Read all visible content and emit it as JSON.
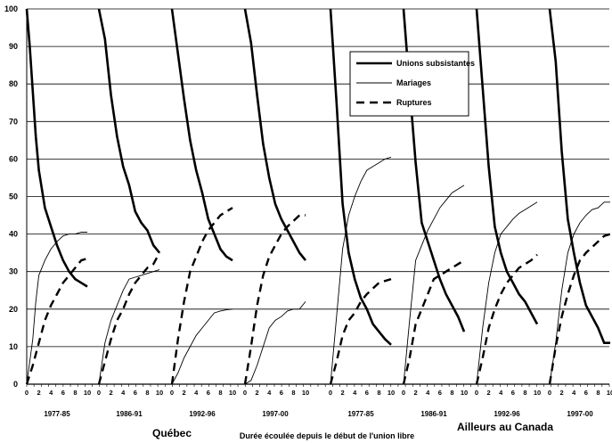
{
  "chart_data": {
    "type": "line",
    "xlabel": "Durée écoulée depuis le début de l'union libre",
    "ylim": [
      0,
      100
    ],
    "yticks": [
      0,
      10,
      20,
      30,
      40,
      50,
      60,
      70,
      80,
      90,
      100
    ],
    "xticks": [
      0,
      2,
      4,
      6,
      8,
      10
    ],
    "grid": "horizontal",
    "legend_position": "top-right",
    "legend": [
      {
        "label": "Unions subsistantes",
        "style": "thick-solid"
      },
      {
        "label": "Mariages",
        "style": "thin-solid"
      },
      {
        "label": "Ruptures",
        "style": "thick-dashed"
      }
    ],
    "regions": [
      {
        "name": "Québec",
        "panels": [
          0,
          1,
          2,
          3
        ]
      },
      {
        "name": "Ailleurs au Canada",
        "panels": [
          4,
          5,
          6,
          7
        ]
      }
    ],
    "panels": [
      {
        "period": "1977-85",
        "series": {
          "unions": [
            [
              0,
              100
            ],
            [
              0.5,
              90
            ],
            [
              1,
              78
            ],
            [
              1.5,
              66
            ],
            [
              2,
              57
            ],
            [
              3,
              47
            ],
            [
              4,
              42
            ],
            [
              5,
              37
            ],
            [
              6,
              33
            ],
            [
              7,
              30
            ],
            [
              8,
              28
            ],
            [
              9,
              27
            ],
            [
              10,
              26
            ]
          ],
          "mariages": [
            [
              0,
              0
            ],
            [
              0.5,
              6
            ],
            [
              1,
              12
            ],
            [
              1.5,
              22
            ],
            [
              2,
              29
            ],
            [
              3,
              33
            ],
            [
              4,
              36
            ],
            [
              5,
              38
            ],
            [
              6,
              39.5
            ],
            [
              7,
              40
            ],
            [
              8,
              40
            ],
            [
              9,
              40.5
            ],
            [
              10,
              40.5
            ]
          ],
          "ruptures": [
            [
              0,
              0
            ],
            [
              1,
              5
            ],
            [
              2,
              11
            ],
            [
              3,
              17
            ],
            [
              4,
              21
            ],
            [
              5,
              24
            ],
            [
              6,
              27
            ],
            [
              7,
              29
            ],
            [
              8,
              31
            ],
            [
              9,
              33
            ],
            [
              10,
              33.5
            ]
          ]
        }
      },
      {
        "period": "1986-91",
        "series": {
          "unions": [
            [
              0,
              100
            ],
            [
              1,
              92
            ],
            [
              2,
              77
            ],
            [
              3,
              66
            ],
            [
              4,
              58
            ],
            [
              5,
              53
            ],
            [
              6,
              46
            ],
            [
              7,
              43
            ],
            [
              8,
              41
            ],
            [
              9,
              37
            ],
            [
              10,
              35
            ]
          ],
          "mariages": [
            [
              0,
              0
            ],
            [
              1,
              11
            ],
            [
              2,
              17
            ],
            [
              3,
              21
            ],
            [
              4,
              25
            ],
            [
              5,
              28
            ],
            [
              6,
              28.5
            ],
            [
              7,
              29
            ],
            [
              8,
              29.5
            ],
            [
              9,
              30
            ],
            [
              10,
              30.5
            ]
          ],
          "ruptures": [
            [
              0,
              0
            ],
            [
              1,
              6
            ],
            [
              2,
              12
            ],
            [
              3,
              17
            ],
            [
              4,
              20
            ],
            [
              5,
              24
            ],
            [
              6,
              27
            ],
            [
              7,
              29
            ],
            [
              8,
              31
            ],
            [
              9,
              32
            ],
            [
              10,
              35
            ]
          ]
        }
      },
      {
        "period": "1992-96",
        "series": {
          "unions": [
            [
              0,
              100
            ],
            [
              1,
              88
            ],
            [
              2,
              76
            ],
            [
              3,
              65
            ],
            [
              4,
              57
            ],
            [
              5,
              51
            ],
            [
              6,
              44
            ],
            [
              7,
              40
            ],
            [
              8,
              36
            ],
            [
              9,
              34
            ],
            [
              10,
              33
            ]
          ],
          "mariages": [
            [
              0,
              0
            ],
            [
              1,
              3
            ],
            [
              2,
              7
            ],
            [
              3,
              10
            ],
            [
              4,
              13
            ],
            [
              5,
              15
            ],
            [
              6,
              17
            ],
            [
              7,
              19
            ],
            [
              8,
              19.5
            ],
            [
              9,
              19.8
            ],
            [
              10,
              20
            ]
          ],
          "ruptures": [
            [
              0,
              0
            ],
            [
              1,
              12
            ],
            [
              2,
              22
            ],
            [
              3,
              30
            ],
            [
              4,
              34
            ],
            [
              5,
              38
            ],
            [
              6,
              41
            ],
            [
              7,
              43
            ],
            [
              8,
              45
            ],
            [
              9,
              46
            ],
            [
              10,
              47
            ]
          ]
        }
      },
      {
        "period": "1997-00",
        "series": {
          "unions": [
            [
              0,
              100
            ],
            [
              1,
              91
            ],
            [
              2,
              77
            ],
            [
              3,
              64
            ],
            [
              4,
              55
            ],
            [
              5,
              48
            ],
            [
              6,
              44
            ],
            [
              7,
              41
            ],
            [
              8,
              38
            ],
            [
              9,
              35
            ],
            [
              10,
              33
            ]
          ],
          "mariages": [
            [
              0,
              0
            ],
            [
              1,
              1
            ],
            [
              2,
              5
            ],
            [
              3,
              10
            ],
            [
              4,
              15
            ],
            [
              5,
              17
            ],
            [
              6,
              18
            ],
            [
              7,
              19.5
            ],
            [
              8,
              20
            ],
            [
              9,
              20
            ],
            [
              10,
              22
            ]
          ],
          "ruptures": [
            [
              0,
              0
            ],
            [
              1,
              10
            ],
            [
              2,
              21
            ],
            [
              3,
              29
            ],
            [
              4,
              34
            ],
            [
              5,
              37
            ],
            [
              6,
              40
            ],
            [
              7,
              42
            ],
            [
              8,
              43.5
            ],
            [
              9,
              45
            ],
            [
              10,
              45
            ]
          ]
        }
      },
      {
        "period": "1977-85",
        "series": {
          "unions": [
            [
              0,
              100
            ],
            [
              1,
              75
            ],
            [
              2,
              48
            ],
            [
              3,
              35
            ],
            [
              4,
              28
            ],
            [
              5,
              23
            ],
            [
              6,
              20
            ],
            [
              7,
              16
            ],
            [
              8,
              14
            ],
            [
              9,
              12
            ],
            [
              10,
              10.5
            ]
          ],
          "mariages": [
            [
              0,
              0
            ],
            [
              1,
              18
            ],
            [
              2,
              36
            ],
            [
              3,
              45
            ],
            [
              4,
              50
            ],
            [
              5,
              54
            ],
            [
              6,
              57
            ],
            [
              7,
              58
            ],
            [
              8,
              59
            ],
            [
              9,
              60
            ],
            [
              10,
              60.5
            ]
          ],
          "ruptures": [
            [
              0,
              0
            ],
            [
              1,
              6
            ],
            [
              2,
              13
            ],
            [
              3,
              17
            ],
            [
              4,
              19
            ],
            [
              5,
              22
            ],
            [
              6,
              24
            ],
            [
              7,
              25.5
            ],
            [
              8,
              27
            ],
            [
              9,
              27.5
            ],
            [
              10,
              28
            ]
          ]
        }
      },
      {
        "period": "1986-91",
        "series": {
          "unions": [
            [
              0,
              100
            ],
            [
              1,
              79
            ],
            [
              2,
              59
            ],
            [
              3,
              43
            ],
            [
              4,
              38
            ],
            [
              5,
              33
            ],
            [
              6,
              28
            ],
            [
              7,
              24
            ],
            [
              8,
              21
            ],
            [
              9,
              18
            ],
            [
              10,
              14
            ]
          ],
          "mariages": [
            [
              0,
              0
            ],
            [
              1,
              17
            ],
            [
              2,
              33
            ],
            [
              3,
              37
            ],
            [
              4,
              41
            ],
            [
              5,
              44
            ],
            [
              6,
              47
            ],
            [
              7,
              49
            ],
            [
              8,
              51
            ],
            [
              9,
              52
            ],
            [
              10,
              53
            ]
          ],
          "ruptures": [
            [
              0,
              0
            ],
            [
              1,
              7
            ],
            [
              2,
              16
            ],
            [
              3,
              20
            ],
            [
              4,
              24
            ],
            [
              5,
              28
            ],
            [
              6,
              29
            ],
            [
              7,
              30
            ],
            [
              8,
              31
            ],
            [
              9,
              32
            ],
            [
              10,
              33
            ]
          ]
        }
      },
      {
        "period": "1992-96",
        "series": {
          "unions": [
            [
              0,
              100
            ],
            [
              1,
              79
            ],
            [
              2,
              58
            ],
            [
              3,
              42
            ],
            [
              4,
              35
            ],
            [
              5,
              30
            ],
            [
              6,
              27
            ],
            [
              7,
              24
            ],
            [
              8,
              22
            ],
            [
              9,
              19
            ],
            [
              10,
              16
            ]
          ],
          "mariages": [
            [
              0,
              0
            ],
            [
              1,
              15
            ],
            [
              2,
              27
            ],
            [
              3,
              35
            ],
            [
              4,
              40
            ],
            [
              5,
              42
            ],
            [
              6,
              44
            ],
            [
              7,
              45.5
            ],
            [
              8,
              46.5
            ],
            [
              9,
              47.5
            ],
            [
              10,
              48.5
            ]
          ],
          "ruptures": [
            [
              0,
              0
            ],
            [
              1,
              7
            ],
            [
              2,
              15
            ],
            [
              3,
              20
            ],
            [
              4,
              24
            ],
            [
              5,
              27
            ],
            [
              6,
              29
            ],
            [
              7,
              31
            ],
            [
              8,
              32
            ],
            [
              9,
              33
            ],
            [
              10,
              34.5
            ]
          ]
        }
      },
      {
        "period": "1997-00",
        "series": {
          "unions": [
            [
              0,
              100
            ],
            [
              1,
              86
            ],
            [
              2,
              62
            ],
            [
              3,
              44
            ],
            [
              4,
              35
            ],
            [
              5,
              27
            ],
            [
              6,
              21
            ],
            [
              7,
              18
            ],
            [
              8,
              15
            ],
            [
              9,
              11
            ],
            [
              10,
              11
            ]
          ],
          "mariages": [
            [
              0,
              0
            ],
            [
              1,
              11
            ],
            [
              2,
              25
            ],
            [
              3,
              35
            ],
            [
              4,
              40
            ],
            [
              5,
              43
            ],
            [
              6,
              45
            ],
            [
              7,
              46.5
            ],
            [
              8,
              47
            ],
            [
              9,
              48.5
            ],
            [
              10,
              48.5
            ]
          ],
          "ruptures": [
            [
              0,
              0
            ],
            [
              1,
              10
            ],
            [
              2,
              18
            ],
            [
              3,
              24
            ],
            [
              4,
              29
            ],
            [
              5,
              33
            ],
            [
              6,
              35
            ],
            [
              7,
              36.5
            ],
            [
              8,
              38
            ],
            [
              9,
              39.5
            ],
            [
              10,
              40
            ]
          ]
        }
      }
    ]
  }
}
